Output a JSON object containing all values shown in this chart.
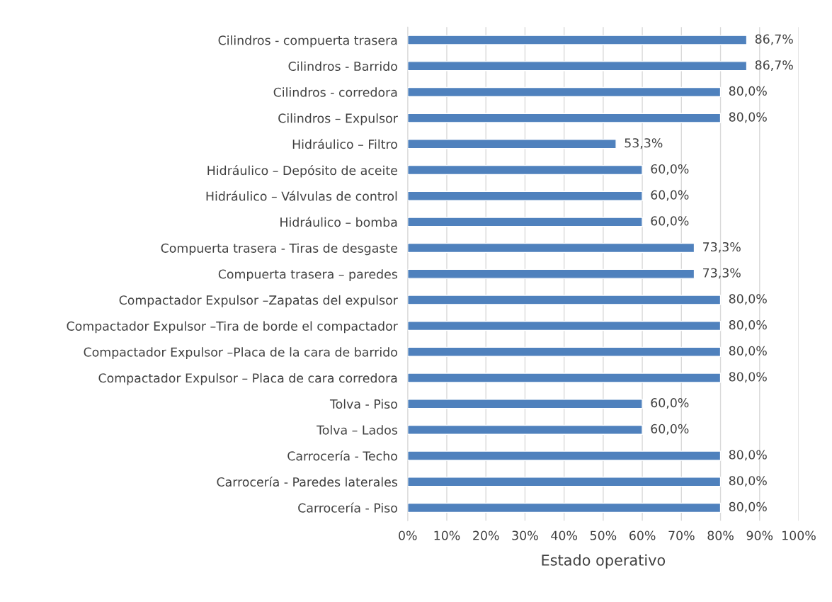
{
  "chart_data": {
    "type": "bar",
    "orientation": "horizontal",
    "xlabel": "Estado operativo",
    "categories": [
      "Cilindros - compuerta trasera",
      "Cilindros - Barrido",
      "Cilindros - corredora",
      "Cilindros – Expulsor",
      "Hidráulico – Filtro",
      "Hidráulico – Depósito de aceite",
      "Hidráulico – Válvulas de control",
      "Hidráulico – bomba",
      "Compuerta trasera - Tiras de desgaste",
      "Compuerta trasera – paredes",
      "Compactador Expulsor –Zapatas del expulsor",
      "Compactador Expulsor –Tira de borde el compactador",
      "Compactador Expulsor –Placa de la cara de barrido",
      "Compactador Expulsor – Placa de cara corredora",
      "Tolva - Piso",
      "Tolva – Lados",
      "Carrocería - Techo",
      "Carrocería - Paredes laterales",
      "Carrocería - Piso"
    ],
    "values": [
      86.7,
      86.7,
      80.0,
      80.0,
      53.3,
      60.0,
      60.0,
      60.0,
      73.3,
      73.3,
      80.0,
      80.0,
      80.0,
      80.0,
      60.0,
      60.0,
      80.0,
      80.0,
      80.0
    ],
    "value_labels": [
      "86,7%",
      "86,7%",
      "80,0%",
      "80,0%",
      "53,3%",
      "60,0%",
      "60,0%",
      "60,0%",
      "73,3%",
      "73,3%",
      "80,0%",
      "80,0%",
      "80,0%",
      "80,0%",
      "60,0%",
      "60,0%",
      "80,0%",
      "80,0%",
      "80,0%"
    ],
    "color": "#4f81bd",
    "xlim": [
      0,
      100
    ],
    "xticks": [
      {
        "value": 0,
        "label": "0%"
      },
      {
        "value": 10,
        "label": "10%"
      },
      {
        "value": 20,
        "label": "20%"
      },
      {
        "value": 30,
        "label": "30%"
      },
      {
        "value": 40,
        "label": "40%"
      },
      {
        "value": 50,
        "label": "50%"
      },
      {
        "value": 60,
        "label": "60%"
      },
      {
        "value": 70,
        "label": "70%"
      },
      {
        "value": 80,
        "label": "80%"
      },
      {
        "value": 90,
        "label": "90%"
      },
      {
        "value": 100,
        "label": "100%"
      }
    ],
    "grid": "x"
  }
}
